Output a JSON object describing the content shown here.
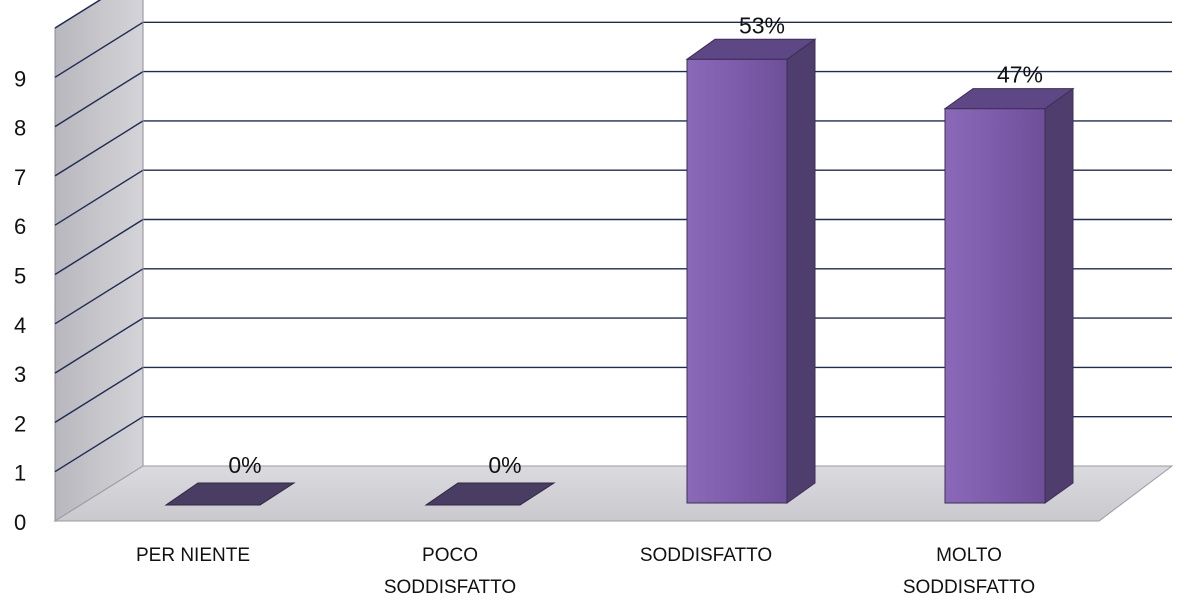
{
  "chart_data": {
    "type": "bar",
    "title": "",
    "xlabel": "",
    "ylabel": "",
    "ylim": [
      0,
      9
    ],
    "yticks": [
      "0",
      "1",
      "2",
      "3",
      "4",
      "5",
      "6",
      "7",
      "8",
      "9"
    ],
    "grid": true,
    "categories": [
      [
        "PER NIENTE"
      ],
      [
        "POCO",
        "SODDISFATTO"
      ],
      [
        "SODDISFATTO"
      ],
      [
        "MOLTO",
        "SODDISFATTO"
      ]
    ],
    "values": [
      0,
      0,
      9,
      8
    ],
    "data_labels": [
      "0%",
      "0%",
      "53%",
      "47%"
    ],
    "colors": {
      "bar_front": "#7b5aa8",
      "bar_side": "#4f3d6e",
      "bar_top": "#5d4784",
      "wall": "#c8c8cd",
      "floor": "#d6d6da",
      "grid": "#1f2a55"
    }
  }
}
